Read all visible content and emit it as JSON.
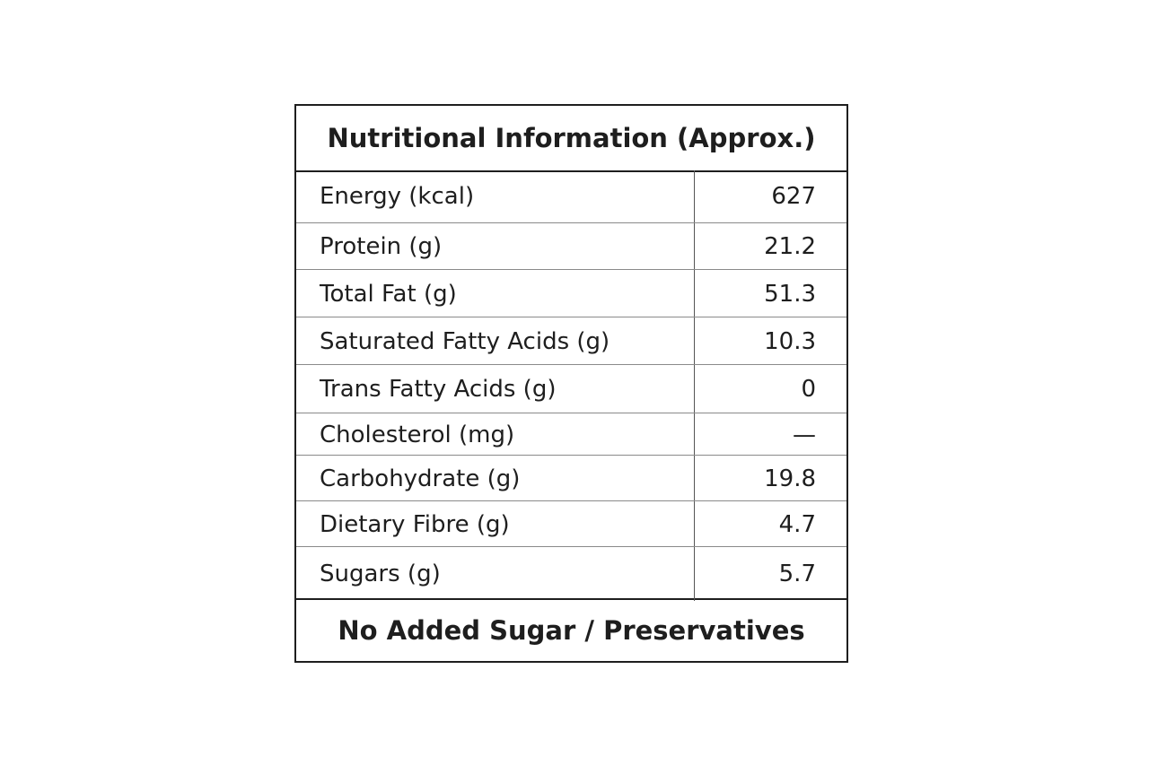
{
  "table": {
    "title": "Nutritional Information (Approx.)",
    "rows": [
      [
        "Energy (kcal)",
        "627"
      ],
      [
        "Protein (g)",
        "21.2"
      ],
      [
        "Total Fat (g)",
        "51.3"
      ],
      [
        "Saturated Fatty Acids (g)",
        "10.3"
      ],
      [
        "Trans Fatty Acids (g)",
        "0"
      ],
      [
        "Cholesterol (mg)",
        "—"
      ],
      [
        "Carbohydrate (g)",
        "19.8"
      ],
      [
        "Dietary Fibre (g)",
        "4.7"
      ],
      [
        "Sugars (g)",
        "5.7"
      ]
    ],
    "footer": "No Added Sugar / Preservatives"
  }
}
